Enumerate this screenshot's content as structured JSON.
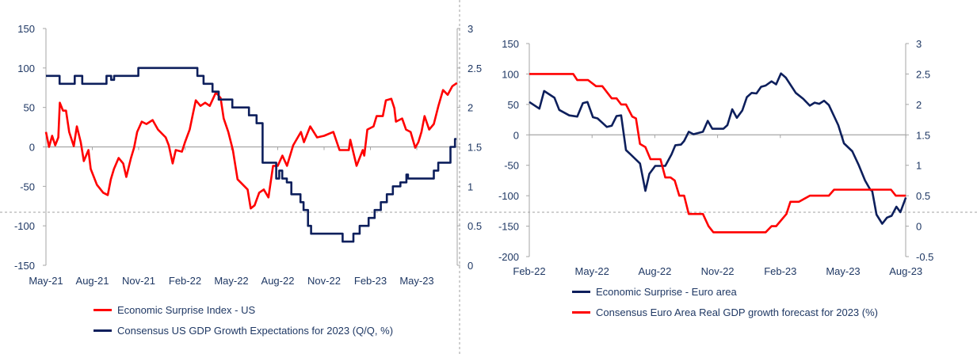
{
  "colors": {
    "red": "#ff0000",
    "navy": "#0d1f5c",
    "axis": "#a6a6a6",
    "text": "#1f3864"
  },
  "chart_data": [
    {
      "type": "line",
      "title": "",
      "xlabel": "",
      "ylabel": "",
      "x_unit": "months since May-21",
      "xticks": [
        "May-21",
        "Aug-21",
        "Nov-21",
        "Feb-22",
        "May-22",
        "Aug-22",
        "Nov-22",
        "Feb-23",
        "May-23"
      ],
      "ylim_left": [
        -150,
        150
      ],
      "yticks_left": [
        "150",
        "100",
        "50",
        "0",
        "-50",
        "-100",
        "-150"
      ],
      "ylim_right": [
        0,
        3
      ],
      "yticks_right": [
        "3",
        "2.5",
        "2",
        "1.5",
        "1",
        "0.5",
        "0"
      ],
      "legend_placement": "bottom",
      "series": [
        {
          "name": "Economic Surprise Index - US",
          "axis": "left",
          "color": "#ff0000",
          "step": false,
          "points": [
            [
              0,
              19
            ],
            [
              0.2,
              0
            ],
            [
              0.4,
              14
            ],
            [
              0.6,
              2
            ],
            [
              0.8,
              12
            ],
            [
              0.9,
              56
            ],
            [
              1.1,
              46
            ],
            [
              1.3,
              46
            ],
            [
              1.5,
              19
            ],
            [
              1.8,
              1
            ],
            [
              2,
              26
            ],
            [
              2.25,
              6
            ],
            [
              2.45,
              -18
            ],
            [
              2.75,
              -4
            ],
            [
              2.9,
              -28
            ],
            [
              3.3,
              -48
            ],
            [
              3.7,
              -58
            ],
            [
              4,
              -61
            ],
            [
              4.2,
              -41
            ],
            [
              4.4,
              -28
            ],
            [
              4.7,
              -14
            ],
            [
              5,
              -21
            ],
            [
              5.2,
              -38
            ],
            [
              5.5,
              -14
            ],
            [
              5.7,
              -1
            ],
            [
              5.9,
              19
            ],
            [
              6.2,
              32
            ],
            [
              6.5,
              29
            ],
            [
              6.9,
              34
            ],
            [
              7.25,
              22
            ],
            [
              7.75,
              12
            ],
            [
              7.95,
              2
            ],
            [
              8.2,
              -21
            ],
            [
              8.4,
              -4
            ],
            [
              8.8,
              -6
            ],
            [
              9,
              6
            ],
            [
              9.3,
              22
            ],
            [
              9.5,
              41
            ],
            [
              9.7,
              59
            ],
            [
              10,
              52
            ],
            [
              10.3,
              56
            ],
            [
              10.6,
              52
            ],
            [
              11,
              69
            ],
            [
              11.3,
              62
            ],
            [
              11.5,
              36
            ],
            [
              11.8,
              19
            ],
            [
              12.1,
              -4
            ],
            [
              12.4,
              -41
            ],
            [
              12.75,
              -48
            ],
            [
              13.05,
              -54
            ],
            [
              13.25,
              -78
            ],
            [
              13.5,
              -74
            ],
            [
              13.8,
              -58
            ],
            [
              14.1,
              -54
            ],
            [
              14.4,
              -64
            ],
            [
              14.7,
              -24
            ],
            [
              15,
              -24
            ],
            [
              15.3,
              -11
            ],
            [
              15.6,
              -24
            ],
            [
              16,
              2
            ],
            [
              16.5,
              19
            ],
            [
              16.7,
              6
            ],
            [
              17.1,
              26
            ],
            [
              17.55,
              12
            ],
            [
              18,
              14
            ],
            [
              18.6,
              19
            ],
            [
              19,
              -4
            ],
            [
              19.6,
              -4
            ],
            [
              19.7,
              9
            ],
            [
              20.1,
              -24
            ],
            [
              20.5,
              -4
            ],
            [
              20.6,
              -11
            ],
            [
              20.8,
              22
            ],
            [
              21.2,
              26
            ],
            [
              21.4,
              39
            ],
            [
              21.8,
              39
            ],
            [
              22,
              59
            ],
            [
              22.35,
              61
            ],
            [
              22.55,
              49
            ],
            [
              22.65,
              32
            ],
            [
              23.05,
              36
            ],
            [
              23.3,
              22
            ],
            [
              23.6,
              19
            ],
            [
              23.9,
              -1
            ],
            [
              24.1,
              6
            ],
            [
              24.3,
              19
            ],
            [
              24.5,
              39
            ],
            [
              24.8,
              22
            ],
            [
              25.1,
              29
            ],
            [
              25.4,
              52
            ],
            [
              25.7,
              72
            ],
            [
              26,
              66
            ],
            [
              26.3,
              77
            ],
            [
              26.6,
              81
            ]
          ]
        },
        {
          "name": "Consensus US GDP Growth Expectations for 2023 (Q/Q, %)",
          "axis": "right",
          "color": "#0d1f5c",
          "step": true,
          "points": [
            [
              0,
              2.4
            ],
            [
              0.88,
              2.3
            ],
            [
              1.86,
              2.4
            ],
            [
              2.35,
              2.3
            ],
            [
              3.92,
              2.4
            ],
            [
              4.22,
              2.35
            ],
            [
              4.41,
              2.4
            ],
            [
              5.98,
              2.5
            ],
            [
              9.8,
              2.4
            ],
            [
              10.2,
              2.3
            ],
            [
              10.78,
              2.2
            ],
            [
              11.18,
              2.1
            ],
            [
              12.06,
              2.0
            ],
            [
              13.14,
              1.9
            ],
            [
              13.63,
              1.8
            ],
            [
              14.02,
              1.3
            ],
            [
              14.9,
              1.1
            ],
            [
              15.1,
              1.2
            ],
            [
              15.29,
              1.1
            ],
            [
              15.59,
              1.05
            ],
            [
              15.88,
              0.9
            ],
            [
              16.47,
              0.8
            ],
            [
              16.67,
              0.7
            ],
            [
              16.96,
              0.5
            ],
            [
              17.16,
              0.4
            ],
            [
              19.2,
              0.3
            ],
            [
              19.9,
              0.4
            ],
            [
              20.3,
              0.5
            ],
            [
              20.88,
              0.6
            ],
            [
              21.27,
              0.7
            ],
            [
              21.67,
              0.8
            ],
            [
              22.06,
              0.9
            ],
            [
              22.45,
              1.0
            ],
            [
              22.94,
              1.05
            ],
            [
              23.33,
              1.15
            ],
            [
              23.43,
              1.1
            ],
            [
              25.1,
              1.2
            ],
            [
              25.39,
              1.3
            ],
            [
              26.18,
              1.5
            ],
            [
              26.47,
              1.6
            ],
            [
              26.57,
              1.6
            ]
          ]
        }
      ]
    },
    {
      "type": "line",
      "title": "",
      "xlabel": "",
      "ylabel": "",
      "x_unit": "months since Feb-22",
      "xticks": [
        "Feb-22",
        "May-22",
        "Aug-22",
        "Nov-22",
        "Feb-23",
        "May-23",
        "Aug-23"
      ],
      "ylim_left": [
        -200,
        150
      ],
      "yticks_left": [
        "150",
        "100",
        "50",
        "0",
        "-50",
        "-100",
        "-150",
        "-200"
      ],
      "ylim_right": [
        -0.5,
        3
      ],
      "yticks_right": [
        "3",
        "2.5",
        "2",
        "1.5",
        "1",
        "0.5",
        "0",
        "-0.5"
      ],
      "legend_placement": "bottom",
      "series": [
        {
          "name": "Economic Surprise - Euro area",
          "axis": "left",
          "color": "#0d1f5c",
          "step": false,
          "points": [
            [
              0,
              54
            ],
            [
              0.48,
              43
            ],
            [
              0.71,
              72
            ],
            [
              1.2,
              61
            ],
            [
              1.43,
              41
            ],
            [
              1.91,
              32
            ],
            [
              2.29,
              30
            ],
            [
              2.56,
              52
            ],
            [
              2.78,
              54
            ],
            [
              3.04,
              29
            ],
            [
              3.26,
              27
            ],
            [
              3.71,
              13
            ],
            [
              3.94,
              15
            ],
            [
              4.17,
              31
            ],
            [
              4.39,
              32
            ],
            [
              4.62,
              -25
            ],
            [
              4.84,
              -32
            ],
            [
              5.29,
              -47
            ],
            [
              5.55,
              -92
            ],
            [
              5.74,
              -64
            ],
            [
              6.02,
              -51
            ],
            [
              6.5,
              -51
            ],
            [
              6.8,
              -32
            ],
            [
              6.98,
              -17
            ],
            [
              7.25,
              -16
            ],
            [
              7.4,
              -10
            ],
            [
              7.62,
              5
            ],
            [
              7.85,
              1
            ],
            [
              8.3,
              5
            ],
            [
              8.53,
              23
            ],
            [
              8.75,
              10
            ],
            [
              9.28,
              10
            ],
            [
              9.47,
              16
            ],
            [
              9.7,
              42
            ],
            [
              9.92,
              28
            ],
            [
              10.18,
              40
            ],
            [
              10.4,
              62
            ],
            [
              10.63,
              69
            ],
            [
              10.86,
              68
            ],
            [
              11.08,
              79
            ],
            [
              11.3,
              81
            ],
            [
              11.58,
              88
            ],
            [
              11.8,
              83
            ],
            [
              12.03,
              101
            ],
            [
              12.26,
              94
            ],
            [
              12.74,
              69
            ],
            [
              13.1,
              59
            ],
            [
              13.41,
              48
            ],
            [
              13.64,
              53
            ],
            [
              13.86,
              51
            ],
            [
              14.09,
              56
            ],
            [
              14.32,
              49
            ],
            [
              14.77,
              16
            ],
            [
              15.04,
              -14
            ],
            [
              15.44,
              -27
            ],
            [
              15.74,
              -49
            ],
            [
              16.05,
              -75
            ],
            [
              16.3,
              -90
            ],
            [
              16.39,
              -92
            ],
            [
              16.6,
              -131
            ],
            [
              16.87,
              -146
            ],
            [
              17.1,
              -136
            ],
            [
              17.32,
              -133
            ],
            [
              17.55,
              -118
            ],
            [
              17.74,
              -127
            ],
            [
              18,
              -103
            ]
          ]
        },
        {
          "name": "Consensus Euro Area Real GDP growth forecast for 2023 (%)",
          "axis": "right",
          "color": "#ff0000",
          "step": false,
          "points": [
            [
              0,
              2.5
            ],
            [
              2.1,
              2.5
            ],
            [
              2.29,
              2.4
            ],
            [
              2.81,
              2.4
            ],
            [
              3.19,
              2.3
            ],
            [
              3.49,
              2.3
            ],
            [
              3.94,
              2.1
            ],
            [
              4.17,
              2.1
            ],
            [
              4.39,
              2.0
            ],
            [
              4.62,
              2.0
            ],
            [
              4.92,
              1.8
            ],
            [
              5.1,
              1.77
            ],
            [
              5.29,
              1.35
            ],
            [
              5.55,
              1.3
            ],
            [
              5.79,
              1.1
            ],
            [
              6.27,
              1.1
            ],
            [
              6.5,
              0.8
            ],
            [
              6.75,
              0.8
            ],
            [
              6.95,
              0.75
            ],
            [
              7.17,
              0.5
            ],
            [
              7.4,
              0.5
            ],
            [
              7.62,
              0.2
            ],
            [
              8.3,
              0.2
            ],
            [
              8.57,
              0
            ],
            [
              8.8,
              -0.1
            ],
            [
              11.3,
              -0.1
            ],
            [
              11.58,
              0
            ],
            [
              11.8,
              0
            ],
            [
              12.29,
              0.2
            ],
            [
              12.48,
              0.4
            ],
            [
              12.89,
              0.4
            ],
            [
              13.41,
              0.5
            ],
            [
              14.32,
              0.5
            ],
            [
              14.57,
              0.6
            ],
            [
              17.29,
              0.6
            ],
            [
              17.52,
              0.5
            ],
            [
              18,
              0.5
            ]
          ]
        }
      ]
    }
  ]
}
